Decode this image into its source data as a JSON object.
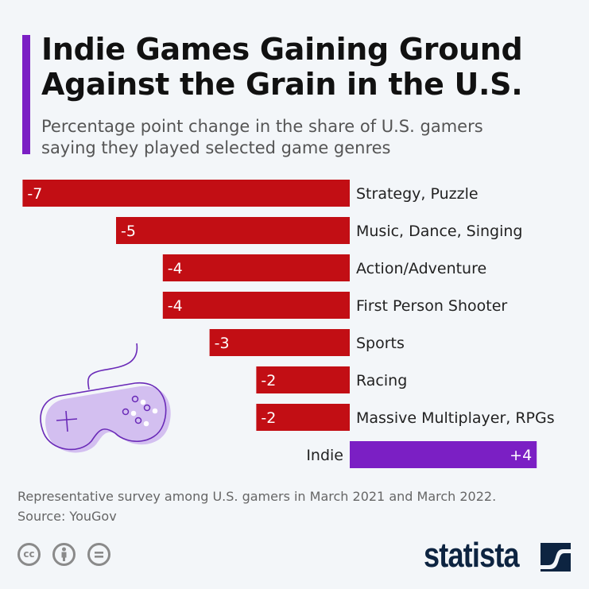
{
  "title_line1": "Indie Games Gaining Ground",
  "title_line2": "Against the Grain in the U.S.",
  "subtitle_line1": "Percentage point change in the share of U.S. gamers",
  "subtitle_line2": "saying they played selected game genres",
  "footer": {
    "note": "Representative survey among U.S. gamers in March 2021 and March 2022.",
    "source": "Source: YouGov",
    "license_icons": [
      "cc-icon",
      "attribution-icon",
      "no-derivatives-icon"
    ],
    "logo": "statista"
  },
  "colors": {
    "negative": "#c20e14",
    "positive": "#7b1fc4",
    "accent": "#7b1fc4"
  },
  "chart_data": {
    "type": "bar",
    "orientation": "horizontal",
    "categories": [
      "Strategy, Puzzle",
      "Music, Dance, Singing",
      "Action/Adventure",
      "First Person Shooter",
      "Sports",
      "Racing",
      "Massive Multiplayer, RPGs",
      "Indie"
    ],
    "values": [
      -7,
      -5,
      -4,
      -4,
      -3,
      -2,
      -2,
      4
    ],
    "labels": [
      "-7",
      "-5",
      "-4",
      "-4",
      "-3",
      "-2",
      "-2",
      "+4"
    ],
    "xlim": [
      -7,
      4
    ],
    "grid": false
  }
}
